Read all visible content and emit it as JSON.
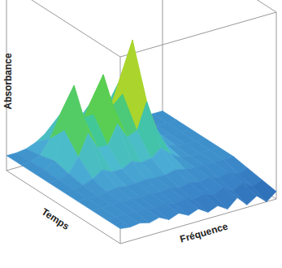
{
  "chart_data": {
    "type": "surface",
    "z_label": "Absorbance",
    "y_label": "Temps",
    "x_label": "Fréquence",
    "tick_labels": false,
    "xlim": [
      0,
      16
    ],
    "ylim": [
      0,
      8
    ],
    "zlim": [
      -0.1,
      1.4
    ],
    "x": [
      0,
      1,
      2,
      3,
      4,
      5,
      6,
      7,
      8,
      9,
      10,
      11,
      12,
      13,
      14,
      15,
      16
    ],
    "y": [
      0,
      1,
      2,
      3,
      4,
      5,
      6,
      7,
      8
    ],
    "z": [
      [
        0.02,
        0.01,
        0.02,
        0.0,
        0.02,
        -0.02,
        0.01,
        -0.03,
        0.0,
        -0.05,
        -0.02,
        -0.07,
        0.0,
        -0.08,
        -0.03,
        -0.1,
        -0.04
      ],
      [
        0.02,
        0.02,
        0.02,
        0.01,
        0.02,
        0.0,
        0.02,
        -0.01,
        0.01,
        -0.02,
        0.0,
        -0.03,
        0.01,
        -0.04,
        0.0,
        -0.05,
        -0.02
      ],
      [
        0.02,
        0.02,
        0.02,
        0.02,
        0.02,
        0.01,
        0.02,
        0.01,
        0.02,
        0.0,
        0.02,
        0.0,
        0.02,
        -0.01,
        0.01,
        -0.02,
        0.0
      ],
      [
        0.02,
        0.02,
        0.02,
        0.03,
        0.04,
        0.03,
        0.03,
        0.04,
        0.03,
        0.03,
        0.05,
        0.03,
        0.02,
        0.02,
        0.02,
        0.02,
        0.02
      ],
      [
        0.02,
        0.02,
        0.03,
        0.06,
        0.11,
        0.07,
        0.07,
        0.11,
        0.08,
        0.09,
        0.15,
        0.08,
        0.03,
        0.02,
        0.02,
        0.02,
        0.02
      ],
      [
        0.02,
        0.025,
        0.05,
        0.16,
        0.33,
        0.19,
        0.19,
        0.34,
        0.21,
        0.24,
        0.45,
        0.21,
        0.06,
        0.03,
        0.02,
        0.02,
        0.02
      ],
      [
        0.02,
        0.03,
        0.08,
        0.3,
        0.64,
        0.36,
        0.36,
        0.66,
        0.39,
        0.46,
        0.87,
        0.4,
        0.1,
        0.04,
        0.02,
        0.02,
        0.02
      ],
      [
        0.02,
        0.025,
        0.05,
        0.16,
        0.33,
        0.19,
        0.19,
        0.34,
        0.21,
        0.24,
        0.45,
        0.21,
        0.06,
        0.03,
        0.02,
        0.02,
        0.02
      ],
      [
        0.02,
        0.02,
        0.03,
        0.06,
        0.11,
        0.07,
        0.07,
        0.11,
        0.08,
        0.09,
        0.15,
        0.08,
        0.03,
        0.02,
        0.02,
        0.02,
        0.02
      ]
    ]
  }
}
